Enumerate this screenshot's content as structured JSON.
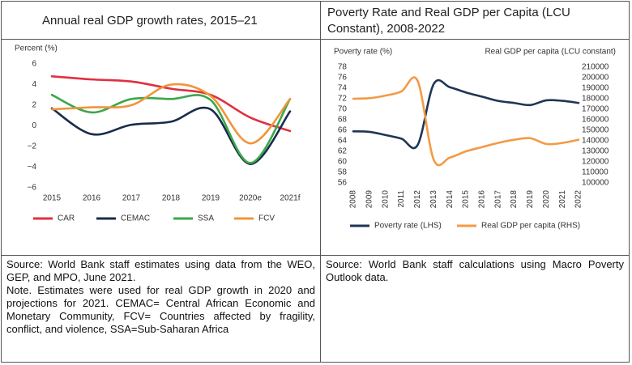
{
  "chart_data": [
    {
      "type": "line",
      "title": "Annual real GDP growth rates, 2015–21",
      "ylabel": "Percent (%)",
      "categories": [
        "2015",
        "2016",
        "2017",
        "2018",
        "2019",
        "2020e",
        "2021f"
      ],
      "series": [
        {
          "name": "CAR",
          "color": "#e0303f",
          "values": [
            4.8,
            4.5,
            4.3,
            3.6,
            3.0,
            0.8,
            -0.5
          ]
        },
        {
          "name": "CEMAC",
          "color": "#1a2b4a",
          "values": [
            1.7,
            -0.8,
            0.1,
            0.4,
            1.6,
            -3.7,
            1.4
          ]
        },
        {
          "name": "SSA",
          "color": "#3aa84a",
          "values": [
            3.0,
            1.3,
            2.6,
            2.6,
            2.5,
            -3.6,
            2.6
          ]
        },
        {
          "name": "FCV",
          "color": "#f0953a",
          "values": [
            1.6,
            1.8,
            2.0,
            4.0,
            2.9,
            -1.7,
            2.6
          ]
        }
      ],
      "ylim": [
        -6,
        6
      ],
      "yticks": [
        6,
        4,
        2,
        0,
        {
          "value": -2,
          "label": "−2"
        },
        {
          "value": -4,
          "label": "−4"
        },
        {
          "value": -6,
          "label": "−6"
        }
      ],
      "grid": false,
      "legend": "bottom",
      "source": "Source: World Bank staff estimates using data from the WEO, GEP, and MPO, June 2021.",
      "note": "Note. Estimates were used for real GDP growth in 2020 and projections for 2021. CEMAC= Central African Economic and Monetary Community, FCV= Countries affected by fragility, conflict, and violence, SSA=Sub-Saharan Africa"
    },
    {
      "type": "line",
      "title": "Poverty Rate and Real GDP per Capita (LCU Constant), 2008-2022",
      "ylabel": "Poverty rate (%)",
      "y2label": "Real GDP per capita (LCU constant)",
      "categories": [
        "2008",
        "2009",
        "2010",
        "2011",
        "2012",
        "2013",
        "2014",
        "2015",
        "2016",
        "2017",
        "2018",
        "2019",
        "2020",
        "2021",
        "2022"
      ],
      "series": [
        {
          "name": "Poverty rate (LHS)",
          "color": "#1f3655",
          "values": [
            65.8,
            65.7,
            65.1,
            64.4,
            63.2,
            74.8,
            74.2,
            73.2,
            72.4,
            71.6,
            71.2,
            70.8,
            71.7,
            71.6,
            71.2
          ]
        },
        {
          "name": "Real GDP per capita (RHS)",
          "color": "#f39a46",
          "axis": "y2",
          "values": [
            180000,
            180500,
            183000,
            187000,
            197000,
            122000,
            124000,
            130000,
            134000,
            138000,
            141000,
            142500,
            137000,
            138000,
            141000
          ]
        }
      ],
      "ylim": [
        56,
        78
      ],
      "yticks": [
        78,
        76,
        74,
        72,
        70,
        68,
        66,
        64,
        62,
        60,
        58,
        56
      ],
      "y2lim": [
        100000,
        210000
      ],
      "y2ticks": [
        210000,
        200000,
        190000,
        180000,
        170000,
        160000,
        150000,
        140000,
        130000,
        120000,
        110000,
        100000
      ],
      "grid": false,
      "legend": "bottom",
      "source": "Source: World Bank staff calculations using Macro Poverty Outlook data."
    }
  ]
}
